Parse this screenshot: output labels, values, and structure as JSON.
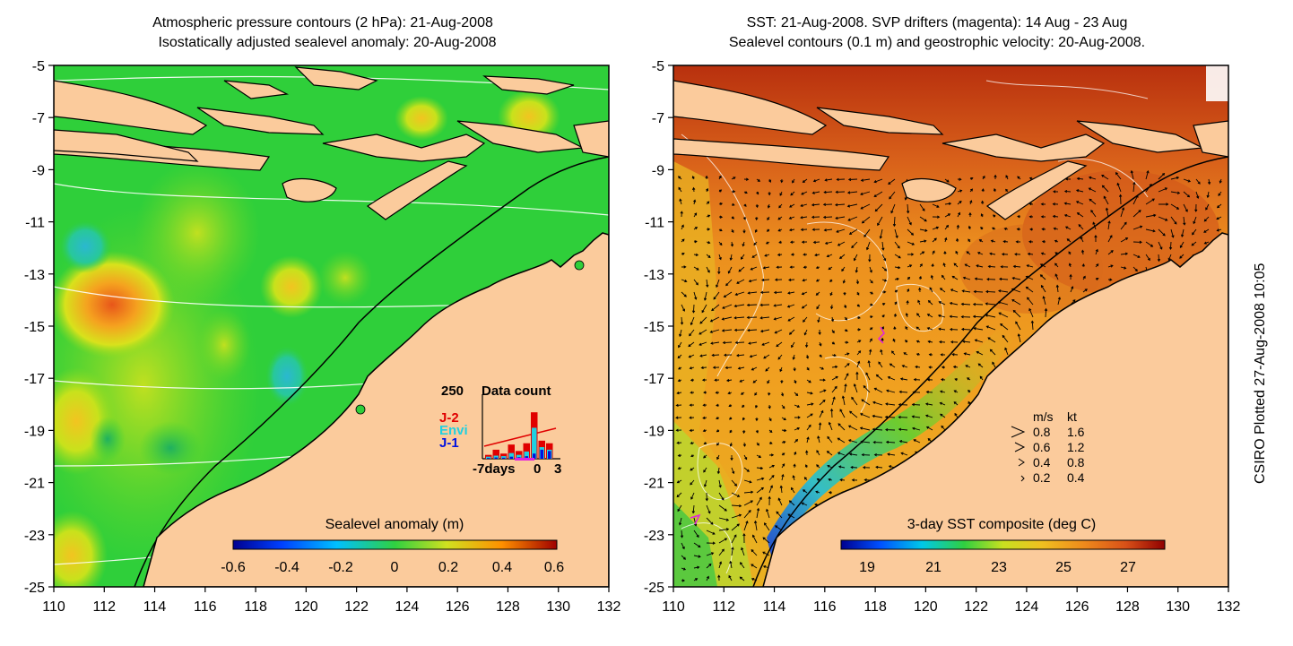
{
  "left_panel": {
    "title_line1": "Atmospheric pressure contours (2 hPa): 21-Aug-2008",
    "title_line2": "Isostatically adjusted sealevel anomaly: 20-Aug-2008",
    "colorbar_label": "Sealevel anomaly (m)",
    "colorbar_ticks": [
      "-0.6",
      "-0.4",
      "-0.2",
      "0",
      "0.2",
      "0.4",
      "0.6"
    ],
    "inset": {
      "y_label": "250",
      "title": "Data count",
      "x_labels": [
        "-7days",
        "0",
        "3"
      ],
      "series_labels": [
        {
          "text": "J-2",
          "color": "#e00000"
        },
        {
          "text": "Envi",
          "color": "#20d0e0"
        },
        {
          "text": "J-1",
          "color": "#0010e0"
        }
      ],
      "bars_red": [
        15,
        35,
        20,
        55,
        30,
        60,
        180,
        70,
        60
      ],
      "bars_cyan": [
        8,
        12,
        10,
        22,
        15,
        28,
        120,
        45,
        35
      ],
      "bars_blue": [
        3,
        5,
        4,
        8,
        6,
        10,
        20,
        35,
        30
      ]
    }
  },
  "right_panel": {
    "title_line1": "SST: 21-Aug-2008. SVP drifters (magenta): 14 Aug - 23 Aug",
    "title_line2": "Sealevel contours (0.1 m) and geostrophic velocity: 20-Aug-2008.",
    "colorbar_label": "3-day SST composite (deg C)",
    "colorbar_ticks": [
      "19",
      "21",
      "23",
      "25",
      "27"
    ],
    "velocity_legend": {
      "header": [
        "m/s",
        "kt"
      ],
      "rows": [
        [
          "0.8",
          "1.6"
        ],
        [
          "0.6",
          "1.2"
        ],
        [
          "0.4",
          "0.8"
        ],
        [
          "0.2",
          "0.4"
        ]
      ]
    }
  },
  "y_ticks": [
    "-5",
    "-7",
    "-9",
    "-11",
    "-13",
    "-15",
    "-17",
    "-19",
    "-21",
    "-23",
    "-25"
  ],
  "x_ticks": [
    "110",
    "112",
    "114",
    "116",
    "118",
    "120",
    "122",
    "124",
    "126",
    "128",
    "130",
    "132"
  ],
  "side_label": "CSIRO Plotted 27-Aug-2008 10:05",
  "colors": {
    "land": "#fbcb9c",
    "sla_base": "#2fcf3a",
    "sst_base": "#e89a1e"
  }
}
